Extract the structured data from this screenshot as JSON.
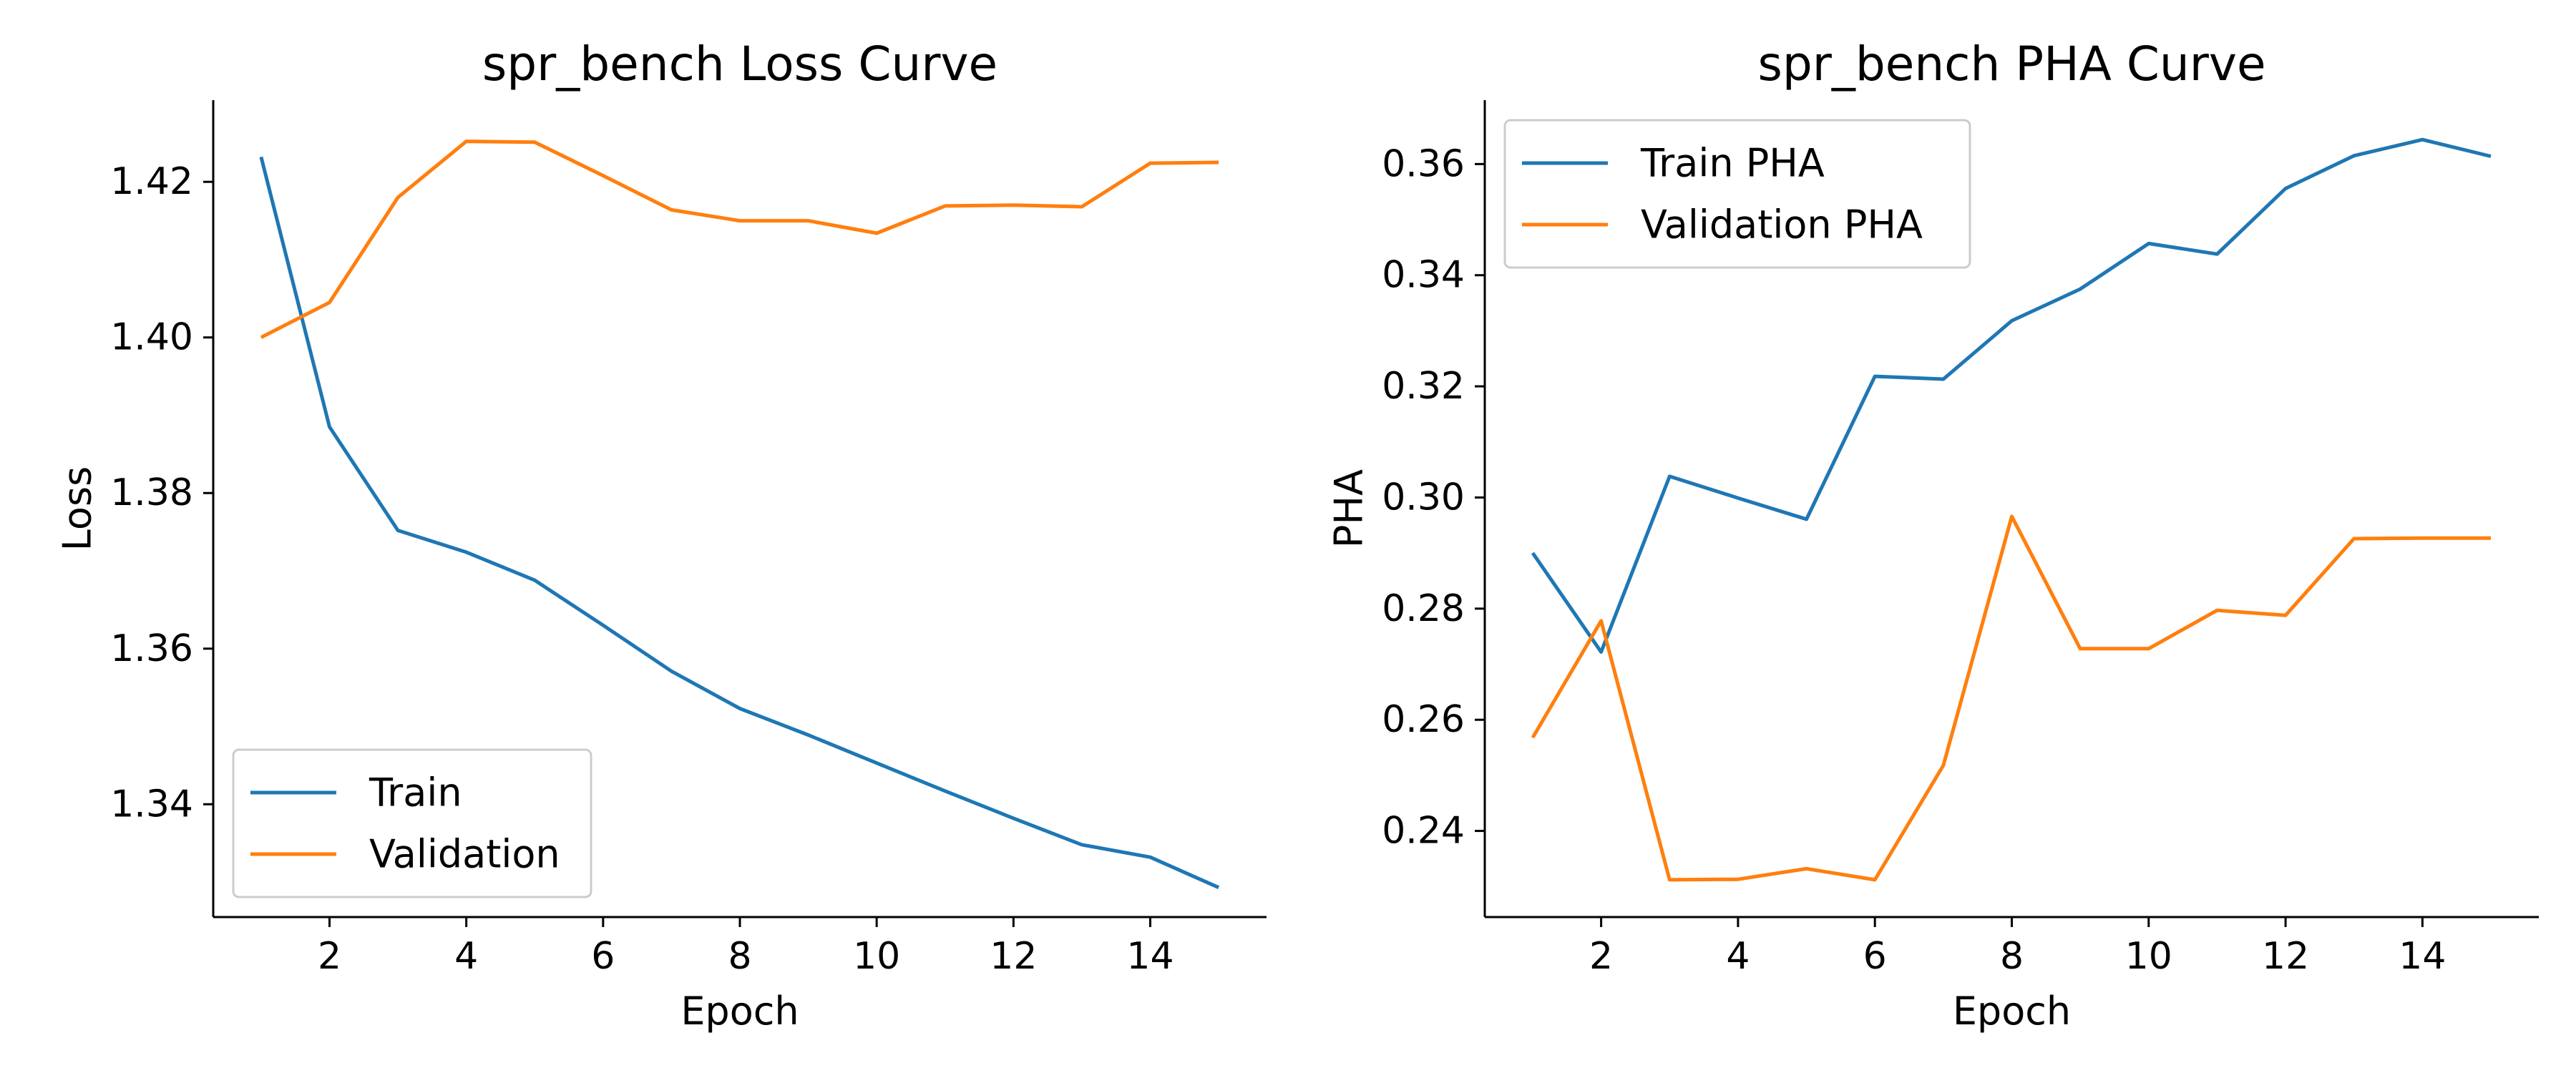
{
  "chart_data": [
    {
      "type": "line",
      "title": "spr_bench Loss Curve",
      "xlabel": "Epoch",
      "ylabel": "Loss",
      "x": [
        1,
        2,
        3,
        4,
        5,
        6,
        7,
        8,
        9,
        10,
        11,
        12,
        13,
        14,
        15
      ],
      "xlim": [
        0.3,
        15.7
      ],
      "ylim": [
        1.3255,
        1.4305
      ],
      "xticks": [
        2,
        4,
        6,
        8,
        10,
        12,
        14
      ],
      "xtick_labels": [
        "2",
        "4",
        "6",
        "8",
        "10",
        "12",
        "14"
      ],
      "yticks": [
        1.34,
        1.36,
        1.38,
        1.4,
        1.42
      ],
      "ytick_labels": [
        "1.34",
        "1.36",
        "1.38",
        "1.40",
        "1.42"
      ],
      "grid": false,
      "legend_position": "lower-left",
      "series": [
        {
          "name": "Train",
          "color": "#1f77b4",
          "values": [
            1.4232,
            1.3885,
            1.3752,
            1.3724,
            1.3688,
            1.363,
            1.3571,
            1.3523,
            1.3489,
            1.3453,
            1.3417,
            1.3382,
            1.3348,
            1.3332,
            1.3293
          ]
        },
        {
          "name": "Validation",
          "color": "#ff7f0e",
          "values": [
            1.4,
            1.4045,
            1.418,
            1.4252,
            1.4251,
            1.4208,
            1.4164,
            1.415,
            1.415,
            1.4134,
            1.4169,
            1.417,
            1.4168,
            1.4224,
            1.4225
          ]
        }
      ]
    },
    {
      "type": "line",
      "title": "spr_bench PHA Curve",
      "xlabel": "Epoch",
      "ylabel": "PHA",
      "x": [
        1,
        2,
        3,
        4,
        5,
        6,
        7,
        8,
        9,
        10,
        11,
        12,
        13,
        14,
        15
      ],
      "xlim": [
        0.3,
        15.7
      ],
      "ylim": [
        0.2245,
        0.3715
      ],
      "xticks": [
        2,
        4,
        6,
        8,
        10,
        12,
        14
      ],
      "xtick_labels": [
        "2",
        "4",
        "6",
        "8",
        "10",
        "12",
        "14"
      ],
      "yticks": [
        0.24,
        0.26,
        0.28,
        0.3,
        0.32,
        0.34,
        0.36
      ],
      "ytick_labels": [
        "0.24",
        "0.26",
        "0.28",
        "0.30",
        "0.32",
        "0.34",
        "0.36"
      ],
      "grid": false,
      "legend_position": "upper-left",
      "series": [
        {
          "name": "Train PHA",
          "color": "#1f77b4",
          "values": [
            0.29,
            0.2722,
            0.3038,
            0.2999,
            0.2961,
            0.3218,
            0.3213,
            0.3318,
            0.3375,
            0.3457,
            0.3438,
            0.3556,
            0.3615,
            0.3644,
            0.3614
          ]
        },
        {
          "name": "Validation PHA",
          "color": "#ff7f0e",
          "values": [
            0.2568,
            0.2778,
            0.2312,
            0.2313,
            0.2332,
            0.2312,
            0.2518,
            0.2966,
            0.2728,
            0.2728,
            0.2797,
            0.2788,
            0.2926,
            0.2927,
            0.2927
          ]
        }
      ]
    }
  ]
}
